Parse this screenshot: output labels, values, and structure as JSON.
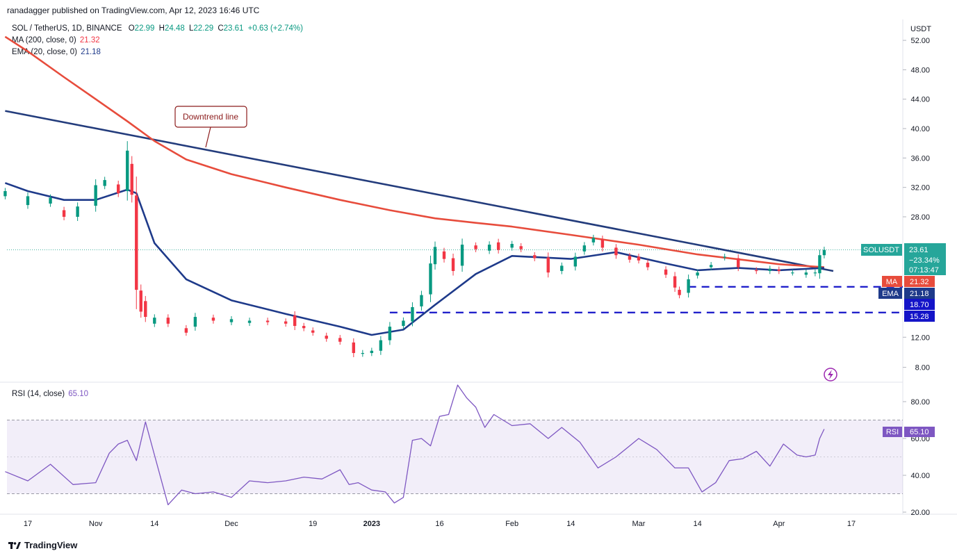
{
  "publisher_line": "ranadagger published on TradingView.com, Apr 12, 2023 16:46 UTC",
  "symbol_line": {
    "name": "SOL / TetherUS, 1D, BINANCE",
    "o_label": "O",
    "o": "22.99",
    "h_label": "H",
    "h": "24.48",
    "l_label": "L",
    "l": "22.29",
    "c_label": "C",
    "c": "23.61",
    "change": "+0.63 (+2.74%)"
  },
  "ma_line": {
    "label": "MA (200, close, 0)",
    "value": "21.32"
  },
  "ema_line": {
    "label": "EMA (20, close, 0)",
    "value": "21.18"
  },
  "rsi_line": {
    "label": "RSI (14, close)",
    "value": "65.10"
  },
  "currency": "USDT",
  "annotation": "Downtrend line",
  "price_badge": {
    "symbol": "SOLUSDT",
    "price": "23.61",
    "change": "−23.34%",
    "countdown": "07:13:47"
  },
  "ma_badge": {
    "label": "MA",
    "value": "21.32"
  },
  "ema_badge": {
    "label": "EMA",
    "value": "21.18"
  },
  "level_badges": [
    "18.70",
    "15.28"
  ],
  "rsi_badge": {
    "label": "RSI",
    "value": "65.10"
  },
  "brand": "TradingView",
  "colors": {
    "up": "#089981",
    "down": "#f23645",
    "ema": "#1e3a8a",
    "ma": "#e74c3c",
    "rsi": "#7e57c2",
    "trend": "#233c7c",
    "support": "#1414c8"
  },
  "chart_data": [
    {
      "type": "candlestick",
      "title": "SOL / TetherUS, 1D, BINANCE",
      "ylabel": "USDT",
      "ylim": [
        6.5,
        54
      ],
      "y_ticks": [
        "52.00",
        "48.00",
        "44.00",
        "40.00",
        "36.00",
        "32.00",
        "28.00",
        "12.00",
        "8.00"
      ],
      "x_ticks": [
        "17",
        "Nov",
        "14",
        "Dec",
        "19",
        "2023",
        "16",
        "Feb",
        "14",
        "Mar",
        "14",
        "Apr",
        "17"
      ],
      "x_tick_dates": [
        "2022-10-17",
        "2022-11-01",
        "2022-11-14",
        "2022-12-01",
        "2022-12-19",
        "2023-01-01",
        "2023-01-16",
        "2023-02-01",
        "2023-02-14",
        "2023-03-01",
        "2023-03-14",
        "2023-04-01",
        "2023-04-17"
      ],
      "series": [
        {
          "name": "SOL / TetherUS",
          "points": [
            [
              "2022-10-12",
              30.8,
              31.5
            ],
            [
              "2022-10-17",
              29.6,
              30.8
            ],
            [
              "2022-10-22",
              29.8,
              30.6
            ],
            [
              "2022-10-25",
              28.9,
              28.0
            ],
            [
              "2022-10-28",
              28.0,
              29.4
            ],
            [
              "2022-11-01",
              29.5,
              32.3
            ],
            [
              "2022-11-03",
              32.2,
              33.0
            ],
            [
              "2022-11-06",
              32.4,
              31.2
            ],
            [
              "2022-11-08",
              31.5,
              37.0
            ],
            [
              "2022-11-09",
              35.2,
              31.0
            ],
            [
              "2022-11-10",
              30.9,
              18.3
            ],
            [
              "2022-11-11",
              18.2,
              15.4
            ],
            [
              "2022-11-12",
              16.8,
              14.7
            ],
            [
              "2022-11-14",
              13.8,
              14.6
            ],
            [
              "2022-11-17",
              14.6,
              13.8
            ],
            [
              "2022-11-21",
              13.2,
              12.6
            ],
            [
              "2022-11-23",
              13.4,
              14.7
            ],
            [
              "2022-11-27",
              14.6,
              14.2
            ],
            [
              "2022-12-01",
              14.0,
              14.4
            ],
            [
              "2022-12-05",
              13.9,
              14.2
            ],
            [
              "2022-12-09",
              14.2,
              14.0
            ],
            [
              "2022-12-13",
              14.1,
              13.8
            ],
            [
              "2022-12-15",
              14.9,
              13.5
            ],
            [
              "2022-12-17",
              13.5,
              13.2
            ],
            [
              "2022-12-19",
              12.9,
              12.6
            ],
            [
              "2022-12-22",
              12.2,
              11.8
            ],
            [
              "2022-12-25",
              11.9,
              11.4
            ],
            [
              "2022-12-28",
              11.3,
              9.9
            ],
            [
              "2022-12-30",
              9.8,
              9.9
            ],
            [
              "2023-01-01",
              9.9,
              10.2
            ],
            [
              "2023-01-03",
              10.2,
              11.6
            ],
            [
              "2023-01-05",
              11.6,
              13.4
            ],
            [
              "2023-01-08",
              13.5,
              14.2
            ],
            [
              "2023-01-10",
              14.1,
              16.0
            ],
            [
              "2023-01-12",
              16.1,
              17.6
            ],
            [
              "2023-01-14",
              17.7,
              21.8
            ],
            [
              "2023-01-15",
              21.7,
              24.0
            ],
            [
              "2023-01-17",
              23.4,
              22.4
            ],
            [
              "2023-01-19",
              22.5,
              20.8
            ],
            [
              "2023-01-21",
              21.5,
              24.3
            ],
            [
              "2023-01-24",
              24.2,
              23.7
            ],
            [
              "2023-01-27",
              23.5,
              24.3
            ],
            [
              "2023-01-29",
              24.6,
              23.6
            ],
            [
              "2023-02-01",
              23.9,
              24.4
            ],
            [
              "2023-02-03",
              24.1,
              23.7
            ],
            [
              "2023-02-06",
              22.9,
              22.5
            ],
            [
              "2023-02-09",
              22.6,
              20.6
            ],
            [
              "2023-02-12",
              20.8,
              21.5
            ],
            [
              "2023-02-15",
              21.4,
              22.7
            ],
            [
              "2023-02-17",
              23.4,
              24.2
            ],
            [
              "2023-02-19",
              24.6,
              25.2
            ],
            [
              "2023-02-21",
              25.0,
              23.9
            ],
            [
              "2023-02-24",
              23.9,
              22.9
            ],
            [
              "2023-02-27",
              22.8,
              22.3
            ],
            [
              "2023-03-01",
              22.7,
              22.2
            ],
            [
              "2023-03-03",
              21.9,
              21.3
            ],
            [
              "2023-03-07",
              21.0,
              20.3
            ],
            [
              "2023-03-09",
              20.1,
              18.6
            ],
            [
              "2023-03-10",
              18.3,
              17.6
            ],
            [
              "2023-03-12",
              17.9,
              19.7
            ],
            [
              "2023-03-14",
              20.2,
              20.6
            ],
            [
              "2023-03-17",
              21.3,
              21.6
            ],
            [
              "2023-03-20",
              22.6,
              22.7
            ],
            [
              "2023-03-23",
              22.5,
              21.3
            ],
            [
              "2023-03-27",
              20.9,
              20.8
            ],
            [
              "2023-03-30",
              20.8,
              21.1
            ],
            [
              "2023-04-01",
              21.0,
              20.8
            ],
            [
              "2023-04-04",
              20.6,
              20.6
            ],
            [
              "2023-04-07",
              20.3,
              20.6
            ],
            [
              "2023-04-09",
              20.5,
              20.6
            ],
            [
              "2023-04-10",
              20.5,
              22.9
            ],
            [
              "2023-04-11",
              22.9,
              23.6
            ]
          ]
        },
        {
          "name": "MA (200, close, 0)",
          "points": [
            [
              "2022-10-12",
              52.5
            ],
            [
              "2022-10-17",
              50.5
            ],
            [
              "2022-10-25",
              47.0
            ],
            [
              "2022-11-01",
              44.0
            ],
            [
              "2022-11-08",
              41.0
            ],
            [
              "2022-11-14",
              38.3
            ],
            [
              "2022-11-21",
              35.8
            ],
            [
              "2022-12-01",
              33.8
            ],
            [
              "2022-12-13",
              32.0
            ],
            [
              "2022-12-25",
              30.3
            ],
            [
              "2023-01-05",
              28.9
            ],
            [
              "2023-01-15",
              27.8
            ],
            [
              "2023-01-24",
              27.2
            ],
            [
              "2023-02-01",
              26.7
            ],
            [
              "2023-02-14",
              25.6
            ],
            [
              "2023-03-01",
              24.3
            ],
            [
              "2023-03-14",
              23.0
            ],
            [
              "2023-04-01",
              21.7
            ],
            [
              "2023-04-11",
              21.3
            ]
          ]
        },
        {
          "name": "EMA (20, close, 0)",
          "points": [
            [
              "2022-10-12",
              32.6
            ],
            [
              "2022-10-17",
              31.5
            ],
            [
              "2022-10-25",
              30.3
            ],
            [
              "2022-11-01",
              30.3
            ],
            [
              "2022-11-08",
              31.7
            ],
            [
              "2022-11-10",
              31.2
            ],
            [
              "2022-11-14",
              24.5
            ],
            [
              "2022-11-21",
              19.7
            ],
            [
              "2022-12-01",
              16.9
            ],
            [
              "2022-12-13",
              15.1
            ],
            [
              "2022-12-25",
              13.4
            ],
            [
              "2023-01-01",
              12.3
            ],
            [
              "2023-01-08",
              13.0
            ],
            [
              "2023-01-15",
              16.3
            ],
            [
              "2023-01-24",
              20.4
            ],
            [
              "2023-02-01",
              22.8
            ],
            [
              "2023-02-14",
              22.4
            ],
            [
              "2023-02-24",
              23.3
            ],
            [
              "2023-03-07",
              21.8
            ],
            [
              "2023-03-14",
              20.9
            ],
            [
              "2023-03-23",
              21.2
            ],
            [
              "2023-04-01",
              20.9
            ],
            [
              "2023-04-11",
              21.2
            ]
          ]
        },
        {
          "name": "Downtrend line",
          "points": [
            [
              "2022-10-12",
              42.4
            ],
            [
              "2023-04-13",
              20.8
            ]
          ]
        }
      ],
      "horizontal_levels": [
        {
          "value": 18.7,
          "from": "2023-03-12"
        },
        {
          "value": 15.28,
          "from": "2023-01-05"
        }
      ]
    },
    {
      "type": "line",
      "title": "RSI (14, close)",
      "ylim": [
        18,
        92
      ],
      "y_ticks": [
        "80.00",
        "60.00",
        "40.00",
        "20.00"
      ],
      "band": [
        30,
        70
      ],
      "midline": 50,
      "series": [
        {
          "name": "RSI (14, close)",
          "points": [
            [
              "2022-10-12",
              42
            ],
            [
              "2022-10-17",
              37
            ],
            [
              "2022-10-22",
              46
            ],
            [
              "2022-10-27",
              35
            ],
            [
              "2022-11-01",
              36
            ],
            [
              "2022-11-04",
              52
            ],
            [
              "2022-11-06",
              57
            ],
            [
              "2022-11-08",
              59
            ],
            [
              "2022-11-10",
              48
            ],
            [
              "2022-11-12",
              69
            ],
            [
              "2022-11-14",
              51
            ],
            [
              "2022-11-17",
              24
            ],
            [
              "2022-11-20",
              32
            ],
            [
              "2022-11-23",
              30
            ],
            [
              "2022-11-27",
              31
            ],
            [
              "2022-12-01",
              28
            ],
            [
              "2022-12-05",
              37
            ],
            [
              "2022-12-09",
              36
            ],
            [
              "2022-12-13",
              37
            ],
            [
              "2022-12-17",
              39
            ],
            [
              "2022-12-21",
              38
            ],
            [
              "2022-12-25",
              43
            ],
            [
              "2022-12-27",
              35
            ],
            [
              "2022-12-29",
              36
            ],
            [
              "2023-01-01",
              32
            ],
            [
              "2023-01-04",
              31
            ],
            [
              "2023-01-06",
              25
            ],
            [
              "2023-01-08",
              28
            ],
            [
              "2023-01-10",
              59
            ],
            [
              "2023-01-12",
              60
            ],
            [
              "2023-01-14",
              56
            ],
            [
              "2023-01-16",
              72
            ],
            [
              "2023-01-18",
              73
            ],
            [
              "2023-01-20",
              89
            ],
            [
              "2023-01-22",
              82
            ],
            [
              "2023-01-24",
              77
            ],
            [
              "2023-01-26",
              66
            ],
            [
              "2023-01-28",
              73
            ],
            [
              "2023-02-01",
              67
            ],
            [
              "2023-02-05",
              68
            ],
            [
              "2023-02-09",
              60
            ],
            [
              "2023-02-12",
              66
            ],
            [
              "2023-02-16",
              58
            ],
            [
              "2023-02-20",
              44
            ],
            [
              "2023-02-24",
              50
            ],
            [
              "2023-02-27",
              56
            ],
            [
              "2023-03-01",
              60
            ],
            [
              "2023-03-05",
              54
            ],
            [
              "2023-03-09",
              44
            ],
            [
              "2023-03-12",
              44
            ],
            [
              "2023-03-15",
              31
            ],
            [
              "2023-03-18",
              36
            ],
            [
              "2023-03-21",
              48
            ],
            [
              "2023-03-24",
              49
            ],
            [
              "2023-03-27",
              53
            ],
            [
              "2023-03-30",
              45
            ],
            [
              "2023-04-02",
              57
            ],
            [
              "2023-04-05",
              51
            ],
            [
              "2023-04-07",
              50
            ],
            [
              "2023-04-09",
              51
            ],
            [
              "2023-04-10",
              60
            ],
            [
              "2023-04-11",
              65.1
            ]
          ]
        }
      ]
    }
  ]
}
